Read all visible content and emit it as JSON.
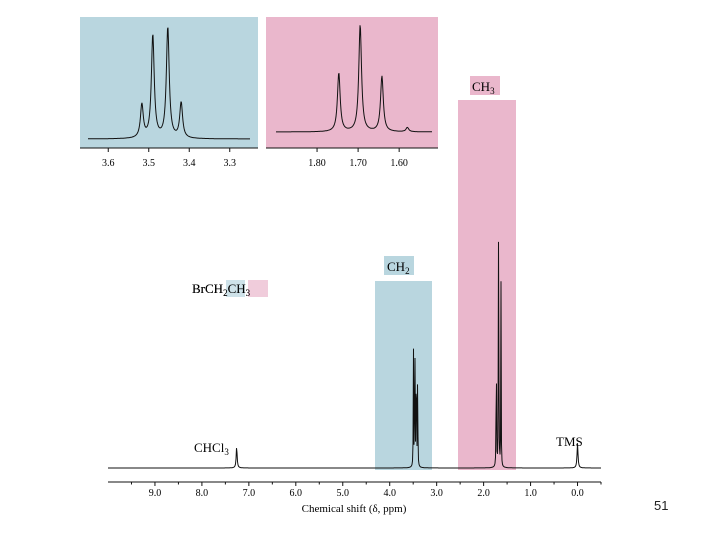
{
  "chart_data": {
    "type": "line",
    "title": "",
    "xlabel": "Chemical shift (δ, ppm)",
    "ylabel": "",
    "xlim": [
      10.0,
      -0.5
    ],
    "x_reversed": true,
    "xticks": [
      "9.0",
      "8.0",
      "7.0",
      "6.0",
      "5.0",
      "4.0",
      "3.0",
      "2.0",
      "1.0",
      "0.0"
    ],
    "grid": false,
    "compound": {
      "base": "BrCH",
      "sub1": "2",
      "mid": "CH",
      "sub2": "3"
    },
    "signals": [
      {
        "label": "CHCl",
        "label_sub": "3",
        "shift": 7.26,
        "relative_height": 0.06
      },
      {
        "label": "CH",
        "label_sub": "2",
        "shift": 3.45,
        "relative_height": 0.52,
        "multiplicity": "quartet"
      },
      {
        "label": "CH",
        "label_sub": "3",
        "shift": 1.68,
        "relative_height": 1.0,
        "multiplicity": "triplet"
      },
      {
        "label": "TMS",
        "label_sub": "",
        "shift": 0.0,
        "relative_height": 0.07
      }
    ],
    "highlight_colors": {
      "CH2": "#b9d6df",
      "CH3": "#eab7cc"
    },
    "insets": [
      {
        "name": "CH2 expansion",
        "xlim": [
          3.65,
          3.25
        ],
        "xticks": [
          "3.6",
          "3.5",
          "3.4",
          "3.3"
        ],
        "peaks": [
          {
            "shift": 3.517,
            "relative_height": 0.3
          },
          {
            "shift": 3.49,
            "relative_height": 0.93
          },
          {
            "shift": 3.453,
            "relative_height": 1.0
          },
          {
            "shift": 3.42,
            "relative_height": 0.32
          }
        ],
        "background": "#b9d6df"
      },
      {
        "name": "CH3 expansion",
        "xlim": [
          1.9,
          1.52
        ],
        "xticks": [
          "1.80",
          "1.70",
          "1.60"
        ],
        "peaks": [
          {
            "shift": 1.747,
            "relative_height": 0.55
          },
          {
            "shift": 1.695,
            "relative_height": 1.0
          },
          {
            "shift": 1.642,
            "relative_height": 0.52
          },
          {
            "shift": 1.58,
            "relative_height": 0.04
          }
        ],
        "background": "#eab7cc"
      }
    ]
  },
  "page_number": "51"
}
